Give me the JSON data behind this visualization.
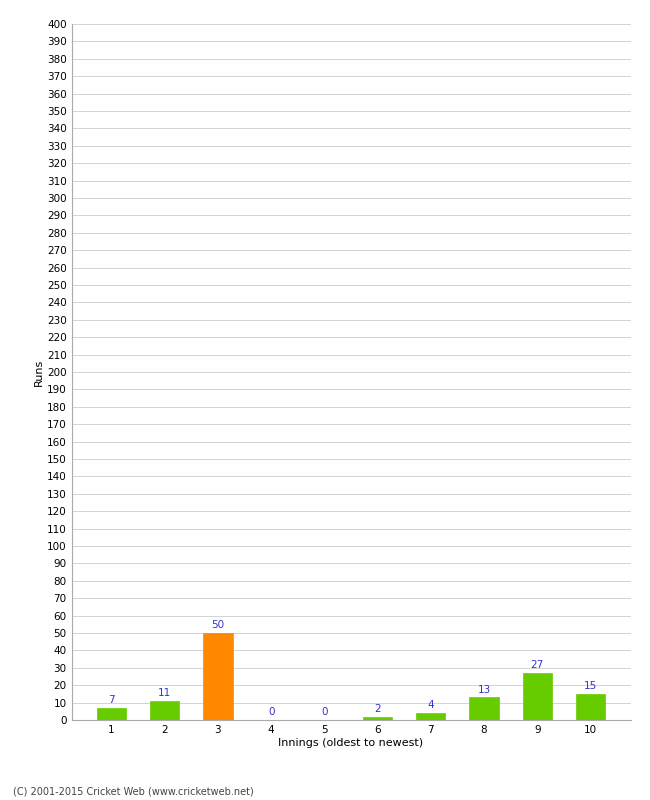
{
  "categories": [
    "1",
    "2",
    "3",
    "4",
    "5",
    "6",
    "7",
    "8",
    "9",
    "10"
  ],
  "values": [
    7,
    11,
    50,
    0,
    0,
    2,
    4,
    13,
    27,
    15
  ],
  "bar_colors": [
    "#66cc00",
    "#66cc00",
    "#ff8800",
    "#66cc00",
    "#66cc00",
    "#66cc00",
    "#66cc00",
    "#66cc00",
    "#66cc00",
    "#66cc00"
  ],
  "xlabel": "Innings (oldest to newest)",
  "ylabel": "Runs",
  "ylim": [
    0,
    400
  ],
  "yticks": [
    0,
    10,
    20,
    30,
    40,
    50,
    60,
    70,
    80,
    90,
    100,
    110,
    120,
    130,
    140,
    150,
    160,
    170,
    180,
    190,
    200,
    210,
    220,
    230,
    240,
    250,
    260,
    270,
    280,
    290,
    300,
    310,
    320,
    330,
    340,
    350,
    360,
    370,
    380,
    390,
    400
  ],
  "label_color": "#3333cc",
  "background_color": "#ffffff",
  "grid_color": "#cccccc",
  "footer": "(C) 2001-2015 Cricket Web (www.cricketweb.net)",
  "bar_width": 0.55,
  "tick_fontsize": 7.5,
  "xlabel_fontsize": 8,
  "ylabel_fontsize": 8,
  "label_fontsize": 7.5
}
